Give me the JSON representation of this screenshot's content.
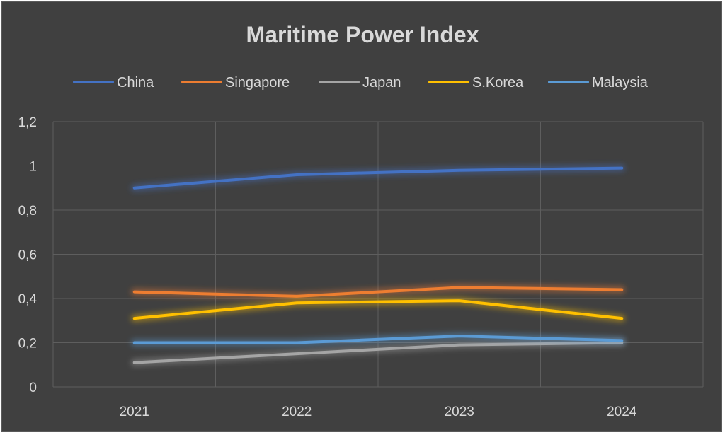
{
  "chart_data": {
    "type": "line",
    "title": "Maritime Power Index",
    "categories": [
      "2021",
      "2022",
      "2023",
      "2024"
    ],
    "ylim": [
      0,
      1.2
    ],
    "yticks": [
      "0",
      "0,2",
      "0,4",
      "0,6",
      "0,8",
      "1",
      "1,2"
    ],
    "grid": true,
    "legend_position": "top",
    "background": "#404040",
    "series": [
      {
        "name": "China",
        "color": "#4472C4",
        "values": [
          0.9,
          0.96,
          0.98,
          0.99
        ]
      },
      {
        "name": "Singapore",
        "color": "#ED7D31",
        "values": [
          0.43,
          0.41,
          0.45,
          0.44
        ]
      },
      {
        "name": "Japan",
        "color": "#A5A5A5",
        "values": [
          0.11,
          0.15,
          0.19,
          0.2
        ]
      },
      {
        "name": "S.Korea",
        "color": "#FFC000",
        "values": [
          0.31,
          0.38,
          0.39,
          0.31
        ]
      },
      {
        "name": "Malaysia",
        "color": "#5B9BD5",
        "values": [
          0.2,
          0.2,
          0.23,
          0.21
        ]
      }
    ]
  }
}
